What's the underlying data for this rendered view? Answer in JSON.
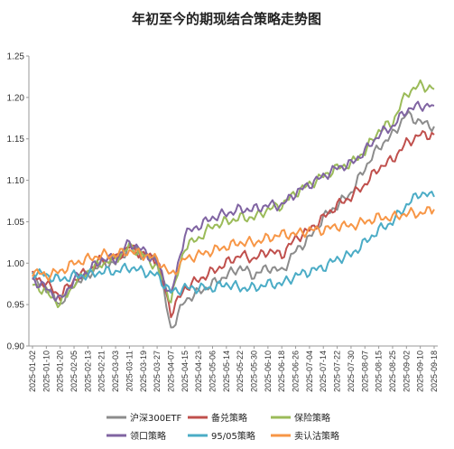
{
  "chart_data": {
    "type": "line",
    "title": "年初至今的期现结合策略走势图",
    "xlabel": "",
    "ylabel": "",
    "ylim": [
      0.9,
      1.25
    ],
    "yticks": [
      "0.90",
      "0.95",
      "1.00",
      "1.05",
      "1.10",
      "1.15",
      "1.20",
      "1.25"
    ],
    "grid": false,
    "legend_position": "bottom",
    "x_ticks": [
      "2025-01-02",
      "2025-01-10",
      "2025-01-20",
      "2025-02-05",
      "2025-02-13",
      "2025-02-21",
      "2025-03-03",
      "2025-03-11",
      "2025-03-19",
      "2025-03-27",
      "2025-04-07",
      "2025-04-15",
      "2025-04-23",
      "2025-05-06",
      "2025-05-14",
      "2025-05-22",
      "2025-05-30",
      "2025-06-10",
      "2025-06-18",
      "2025-06-26",
      "2025-07-04",
      "2025-07-14",
      "2025-07-22",
      "2025-07-30",
      "2025-08-07",
      "2025-08-15",
      "2025-08-25",
      "2025-09-02",
      "2025-09-10",
      "2025-09-18"
    ],
    "series": [
      {
        "name": "沪深300ETF",
        "color": "#8c8c8c",
        "values": [
          0.98,
          0.97,
          0.95,
          0.975,
          0.985,
          1.0,
          1.0,
          1.02,
          1.01,
          1.005,
          0.92,
          0.955,
          0.965,
          0.975,
          0.985,
          0.995,
          0.985,
          0.995,
          0.99,
          1.015,
          1.03,
          1.055,
          1.07,
          1.085,
          1.115,
          1.14,
          1.155,
          1.18,
          1.17,
          1.165
        ]
      },
      {
        "name": "备兑策略",
        "color": "#c0504d",
        "values": [
          0.985,
          0.975,
          0.96,
          0.98,
          0.99,
          1.005,
          1.005,
          1.02,
          1.01,
          1.005,
          0.94,
          0.97,
          0.98,
          0.99,
          1.0,
          1.01,
          1.005,
          1.015,
          1.01,
          1.03,
          1.04,
          1.055,
          1.07,
          1.08,
          1.095,
          1.115,
          1.125,
          1.145,
          1.155,
          1.155
        ]
      },
      {
        "name": "保险策略",
        "color": "#9bbb59",
        "values": [
          0.975,
          0.965,
          0.95,
          0.975,
          0.99,
          1.0,
          1.005,
          1.02,
          1.01,
          0.995,
          0.955,
          1.02,
          1.03,
          1.045,
          1.05,
          1.055,
          1.055,
          1.065,
          1.07,
          1.085,
          1.095,
          1.105,
          1.115,
          1.12,
          1.135,
          1.16,
          1.17,
          1.205,
          1.215,
          1.21
        ]
      },
      {
        "name": "领口策略",
        "color": "#8064a2",
        "values": [
          0.98,
          0.97,
          0.955,
          0.98,
          0.99,
          1.005,
          1.005,
          1.025,
          1.015,
          1.0,
          0.96,
          1.035,
          1.045,
          1.055,
          1.06,
          1.065,
          1.065,
          1.07,
          1.07,
          1.085,
          1.095,
          1.105,
          1.115,
          1.12,
          1.135,
          1.155,
          1.165,
          1.185,
          1.19,
          1.19
        ]
      },
      {
        "name": "95/05策略",
        "color": "#4bacc6",
        "values": [
          0.99,
          0.985,
          0.98,
          0.985,
          0.985,
          0.99,
          0.99,
          0.995,
          0.99,
          0.985,
          0.965,
          0.97,
          0.97,
          0.97,
          0.975,
          0.97,
          0.97,
          0.975,
          0.975,
          0.985,
          0.99,
          0.995,
          1.005,
          1.01,
          1.025,
          1.04,
          1.05,
          1.07,
          1.085,
          1.08
        ]
      },
      {
        "name": "卖认沽策略",
        "color": "#f79646",
        "values": [
          0.99,
          0.985,
          0.99,
          1.0,
          1.005,
          1.01,
          1.01,
          1.015,
          1.01,
          1.005,
          0.985,
          1.005,
          1.01,
          1.015,
          1.02,
          1.025,
          1.025,
          1.03,
          1.035,
          1.035,
          1.04,
          1.04,
          1.045,
          1.045,
          1.05,
          1.055,
          1.055,
          1.06,
          1.06,
          1.065
        ]
      }
    ]
  }
}
